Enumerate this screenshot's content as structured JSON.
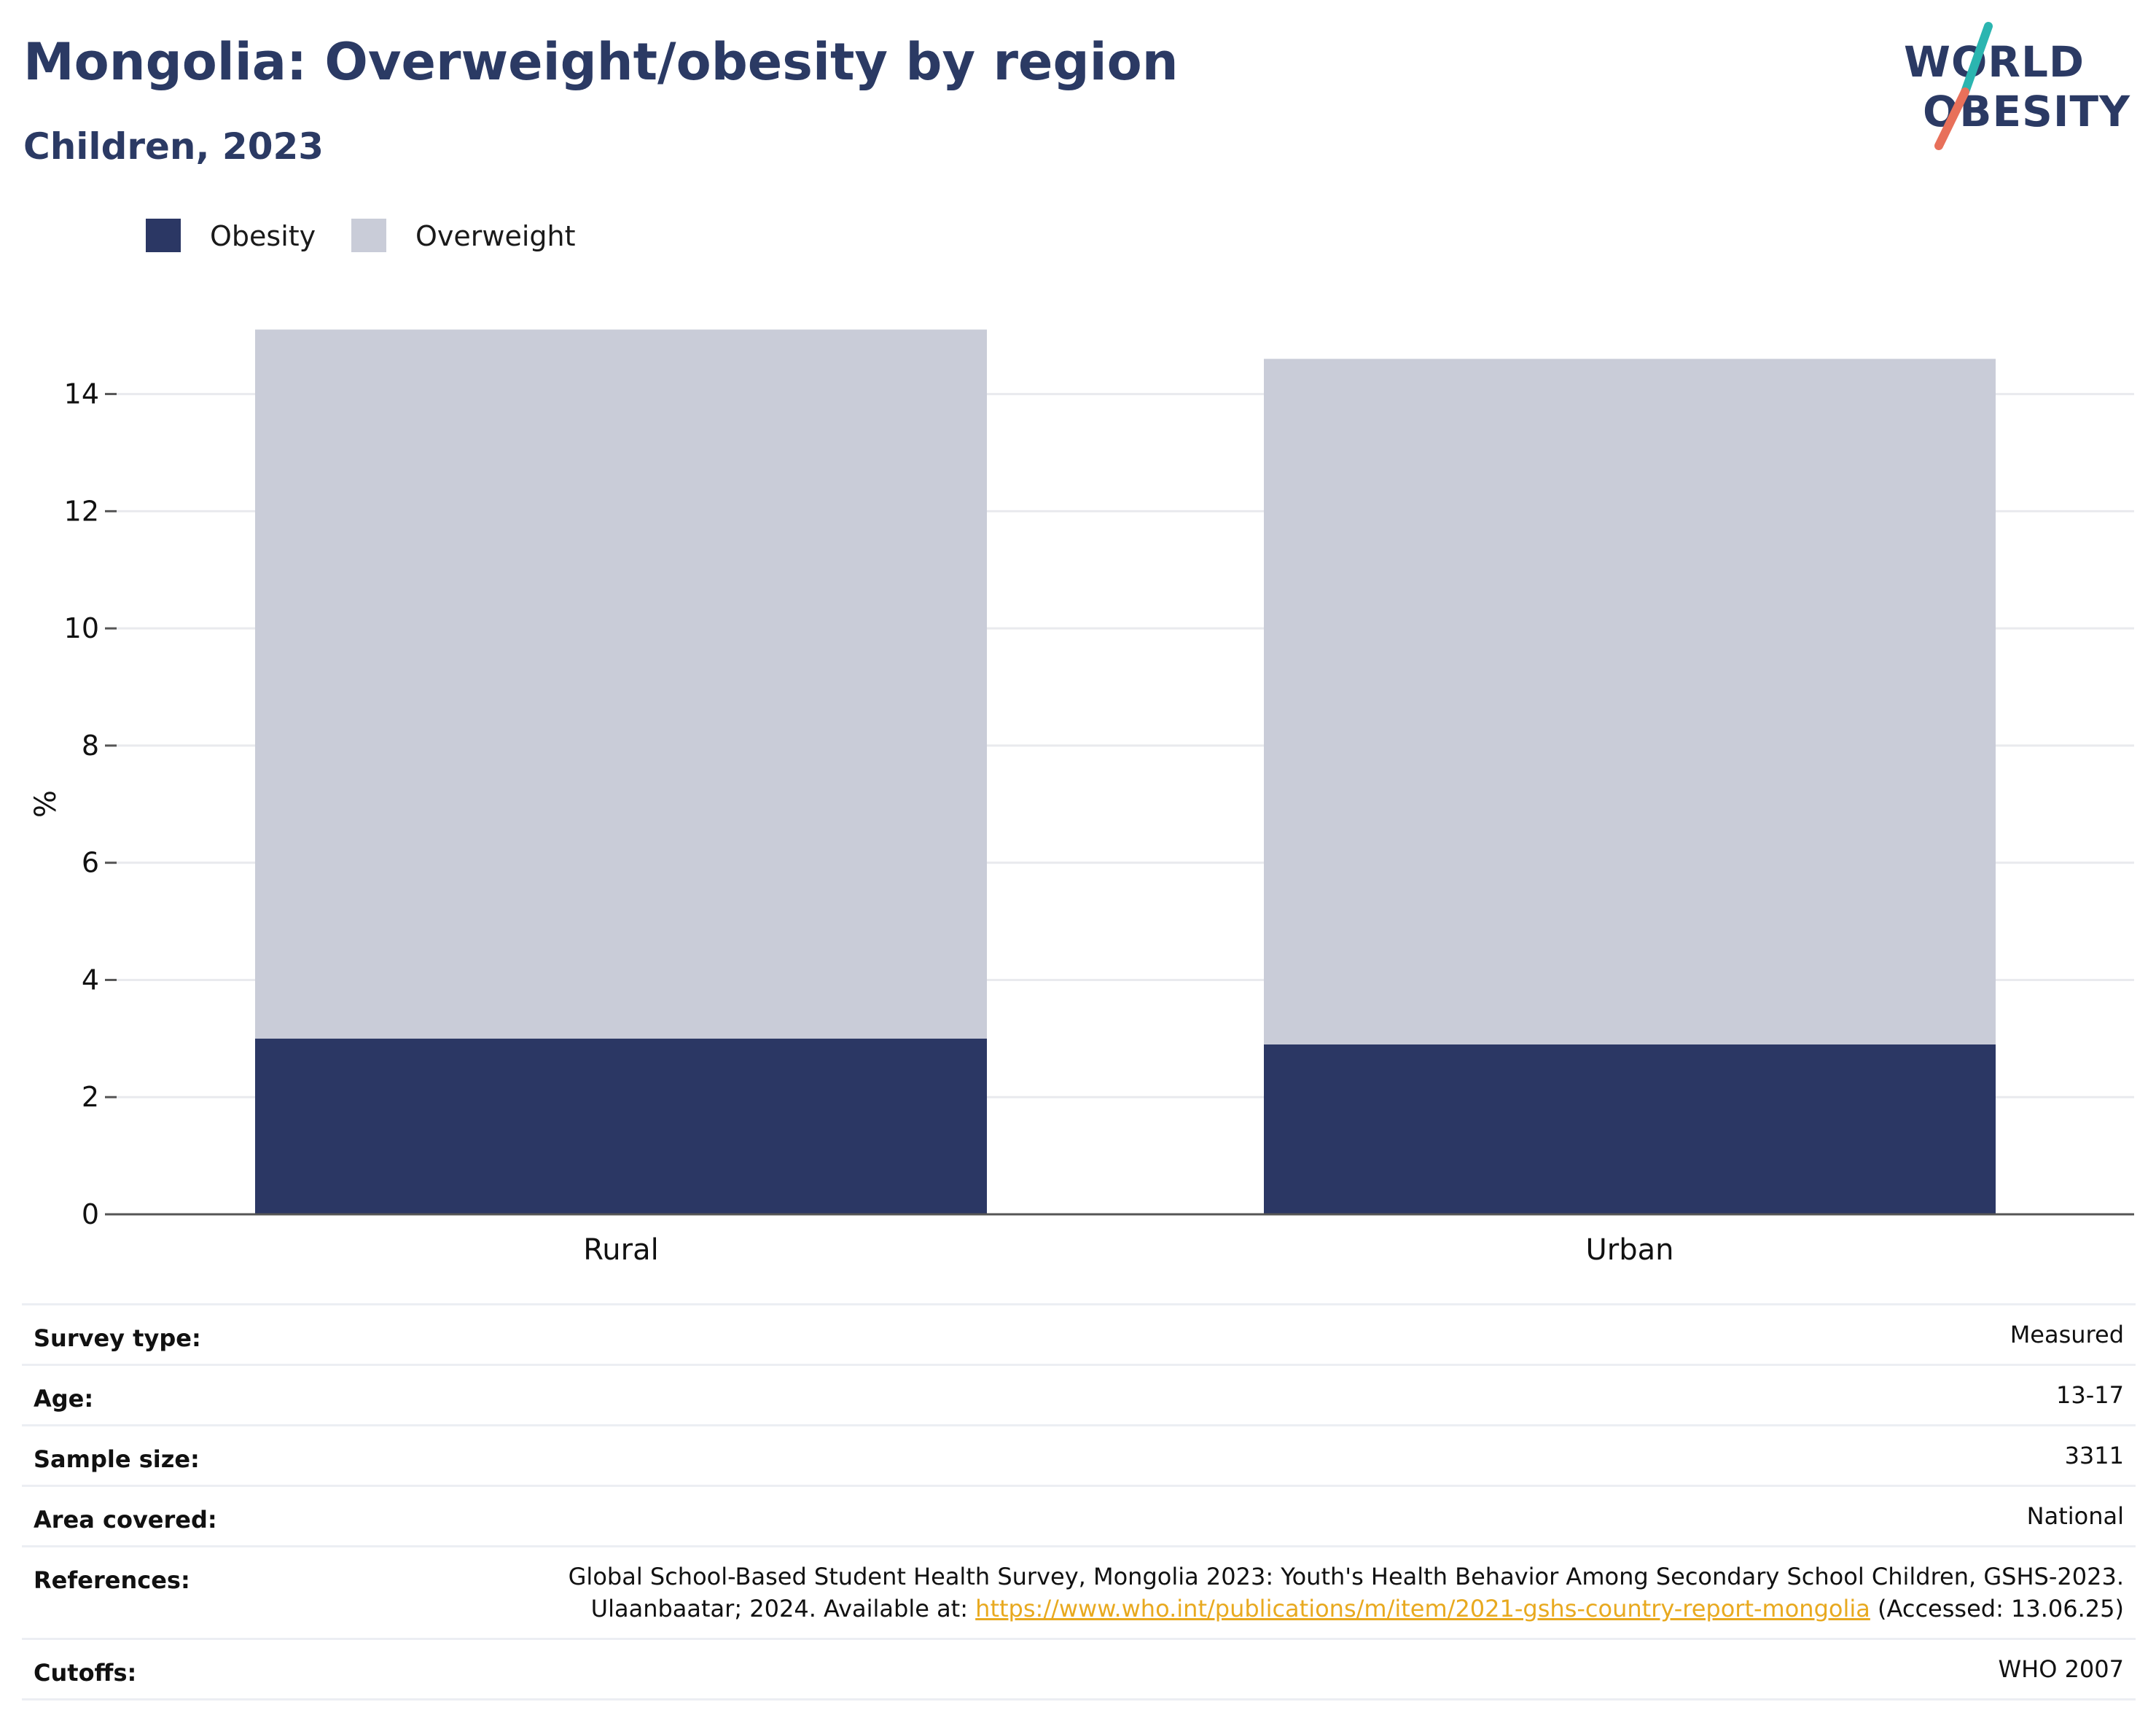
{
  "title": "Mongolia: Overweight/obesity by region",
  "subtitle": "Children, 2023",
  "logo": {
    "line1": "WORLD",
    "line2": "OBESITY",
    "accent_top": "#2bb5b0",
    "accent_bottom": "#e8705a"
  },
  "colors": {
    "obesity": "#2b3764",
    "overweight": "#c9ccd8",
    "grid": "#e9eaee",
    "axis": "#555555",
    "link": "#e8a91f"
  },
  "legend": [
    {
      "label": "Obesity",
      "color": "#2b3764"
    },
    {
      "label": "Overweight",
      "color": "#c9ccd8"
    }
  ],
  "chart_data": {
    "type": "bar",
    "stacked": true,
    "categories": [
      "Rural",
      "Urban"
    ],
    "series": [
      {
        "name": "Obesity",
        "values": [
          3.0,
          2.9
        ]
      },
      {
        "name": "Overweight",
        "values": [
          12.1,
          11.7
        ]
      }
    ],
    "ylabel": "%",
    "xlabel": "",
    "ylim": [
      0,
      15.5
    ],
    "yticks": [
      0,
      2,
      4,
      6,
      8,
      10,
      12,
      14
    ],
    "grid": true,
    "legend_position": "top-left"
  },
  "info": {
    "rows": [
      {
        "label": "Survey type:",
        "value": "Measured"
      },
      {
        "label": "Age:",
        "value": "13-17"
      },
      {
        "label": "Sample size:",
        "value": "3311"
      },
      {
        "label": "Area covered:",
        "value": "National"
      },
      {
        "label": "References:",
        "value_line1": "Global School-Based Student Health Survey, Mongolia 2023: Youth's Health Behavior Among Secondary School Children, GSHS-2023.",
        "value_line2_before": "Ulaanbaatar; 2024. Available at: ",
        "link": "https://www.who.int/publications/m/item/2021-gshs-country-report-mongolia",
        "value_line2_after": " (Accessed: 13.06.25)"
      },
      {
        "label": "Cutoffs:",
        "value": "WHO 2007"
      }
    ]
  }
}
